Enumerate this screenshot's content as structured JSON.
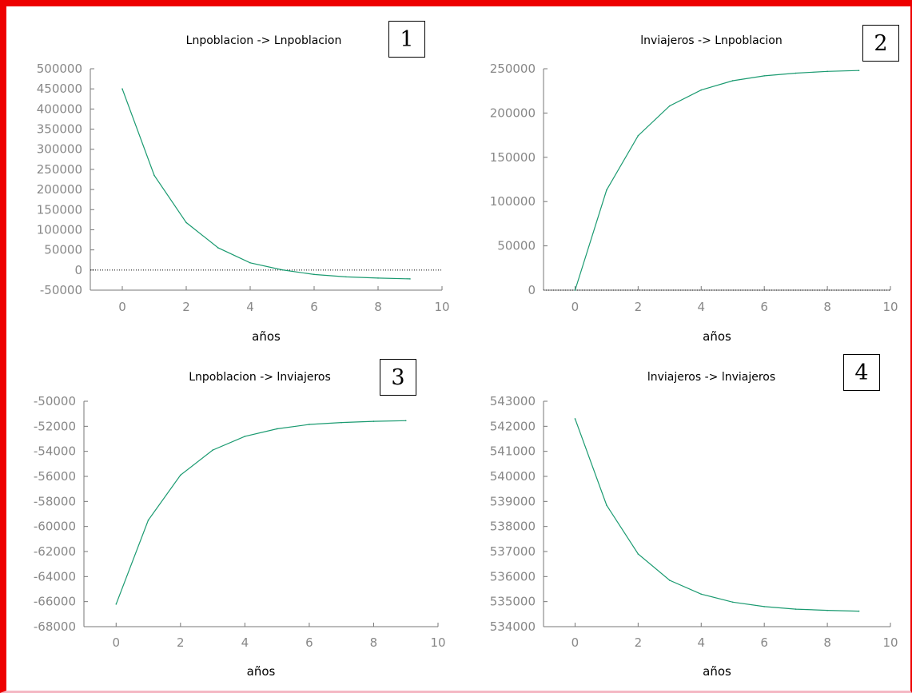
{
  "colors": {
    "frame": "#ee0000",
    "series": "#1a9a70",
    "axis": "#777777",
    "tick_label": "#888888",
    "title": "#000000"
  },
  "panel_numbers": [
    "1",
    "2",
    "3",
    "4"
  ],
  "chart_data": [
    {
      "type": "line",
      "title": "Lnpoblacion -> Lnpoblacion",
      "xlabel": "años",
      "ylabel": "",
      "xlim": [
        -1,
        10
      ],
      "ylim": [
        -50000,
        500000
      ],
      "xticks": [
        0,
        2,
        4,
        6,
        8,
        10
      ],
      "yticks": [
        -50000,
        0,
        50000,
        100000,
        150000,
        200000,
        250000,
        300000,
        350000,
        400000,
        450000,
        500000
      ],
      "zero_line": true,
      "x": [
        0,
        1,
        2,
        3,
        4,
        5,
        6,
        7,
        8,
        9
      ],
      "values": [
        450000,
        235000,
        118000,
        55000,
        18000,
        500,
        -11000,
        -17000,
        -20000,
        -22000
      ]
    },
    {
      "type": "line",
      "title": "lnviajeros -> Lnpoblacion",
      "xlabel": "años",
      "ylabel": "",
      "xlim": [
        -1,
        10
      ],
      "ylim": [
        0,
        250000
      ],
      "xticks": [
        0,
        2,
        4,
        6,
        8,
        10
      ],
      "yticks": [
        0,
        50000,
        100000,
        150000,
        200000,
        250000
      ],
      "zero_line": true,
      "x": [
        0,
        1,
        2,
        3,
        4,
        5,
        6,
        7,
        8,
        9
      ],
      "values": [
        0,
        113000,
        174500,
        208000,
        226000,
        236500,
        242000,
        245000,
        247000,
        248000
      ]
    },
    {
      "type": "line",
      "title": "Lnpoblacion -> lnviajeros",
      "xlabel": "años",
      "ylabel": "",
      "xlim": [
        -1,
        10
      ],
      "ylim": [
        -68000,
        -50000
      ],
      "xticks": [
        0,
        2,
        4,
        6,
        8,
        10
      ],
      "yticks": [
        -68000,
        -66000,
        -64000,
        -62000,
        -60000,
        -58000,
        -56000,
        -54000,
        -52000,
        -50000
      ],
      "zero_line": false,
      "x": [
        0,
        1,
        2,
        3,
        4,
        5,
        6,
        7,
        8,
        9
      ],
      "values": [
        -66200,
        -59500,
        -55900,
        -53900,
        -52800,
        -52200,
        -51850,
        -51700,
        -51600,
        -51550
      ]
    },
    {
      "type": "line",
      "title": "lnviajeros -> lnviajeros",
      "xlabel": "años",
      "ylabel": "",
      "xlim": [
        -1,
        10
      ],
      "ylim": [
        534000,
        543000
      ],
      "xticks": [
        0,
        2,
        4,
        6,
        8,
        10
      ],
      "yticks": [
        534000,
        535000,
        536000,
        537000,
        538000,
        539000,
        540000,
        541000,
        542000,
        543000
      ],
      "zero_line": false,
      "x": [
        0,
        1,
        2,
        3,
        4,
        5,
        6,
        7,
        8,
        9
      ],
      "values": [
        542300,
        538850,
        536900,
        535850,
        535300,
        534980,
        534800,
        534700,
        534650,
        534620
      ]
    }
  ]
}
